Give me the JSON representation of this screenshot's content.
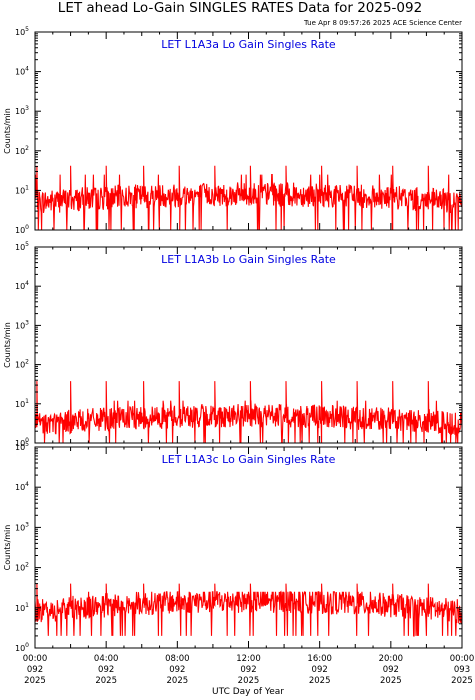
{
  "figure": {
    "title": "LET ahead Lo-Gain SINGLES RATES Data for 2025-092",
    "timestamp": "Tue Apr  8 09:57:26 2025 ACE Science Center",
    "xlabel": "UTC Day of Year",
    "ylabel": "Counts/min"
  },
  "colors": {
    "data": "#ff0000",
    "panel_title": "#0000e0",
    "axes": "#000000",
    "background": "#ffffff"
  },
  "chart_data": [
    {
      "type": "line",
      "title": "LET L1A3a Lo Gain Singles Rate",
      "ylabel": "Counts/min",
      "yscale": "log",
      "ylim": [
        1,
        100000
      ],
      "ytick_exponents": [
        "0",
        "1",
        "2",
        "3",
        "4",
        "5"
      ],
      "xlim": [
        "2025-092 00:00",
        "2025-093 00:00"
      ],
      "baseline": [
        5,
        8
      ],
      "spike_level": 42,
      "spike_hours": [
        0.1,
        2.0,
        4.0,
        6.1,
        8.1,
        10.1,
        12.1,
        14.1,
        16.1,
        18.1,
        20.1,
        22.1
      ],
      "noise_range": [
        1,
        25
      ]
    },
    {
      "type": "line",
      "title": "LET L1A3b Lo Gain Singles Rate",
      "ylabel": "Counts/min",
      "yscale": "log",
      "ylim": [
        1,
        100000
      ],
      "ytick_exponents": [
        "0",
        "1",
        "2",
        "3",
        "4",
        "5"
      ],
      "xlim": [
        "2025-092 00:00",
        "2025-093 00:00"
      ],
      "baseline": [
        3,
        5
      ],
      "spike_level": 38,
      "spike_hours": [
        0.1,
        2.0,
        4.0,
        6.1,
        8.1,
        10.1,
        12.1,
        14.1,
        16.1,
        18.1,
        20.1,
        22.1
      ],
      "noise_range": [
        1,
        12
      ]
    },
    {
      "type": "line",
      "title": "LET L1A3c Lo Gain Singles Rate",
      "ylabel": "Counts/min",
      "yscale": "log",
      "ylim": [
        1,
        100000
      ],
      "ytick_exponents": [
        "0",
        "1",
        "2",
        "3",
        "4",
        "5"
      ],
      "xlim": [
        "2025-092 00:00",
        "2025-093 00:00"
      ],
      "baseline": [
        8,
        15
      ],
      "spike_level": 40,
      "spike_hours": [
        0.1,
        2.0,
        4.0,
        6.1,
        8.1,
        10.1,
        12.1,
        14.1,
        16.1,
        18.1,
        20.1,
        22.1
      ],
      "noise_range": [
        2,
        25
      ]
    }
  ],
  "x_ticks": [
    {
      "time": "00:00",
      "day": "092",
      "year": "2025"
    },
    {
      "time": "04:00",
      "day": "092",
      "year": "2025"
    },
    {
      "time": "08:00",
      "day": "092",
      "year": "2025"
    },
    {
      "time": "12:00",
      "day": "092",
      "year": "2025"
    },
    {
      "time": "16:00",
      "day": "092",
      "year": "2025"
    },
    {
      "time": "20:00",
      "day": "092",
      "year": "2025"
    },
    {
      "time": "00:00",
      "day": "093",
      "year": "2025"
    }
  ]
}
